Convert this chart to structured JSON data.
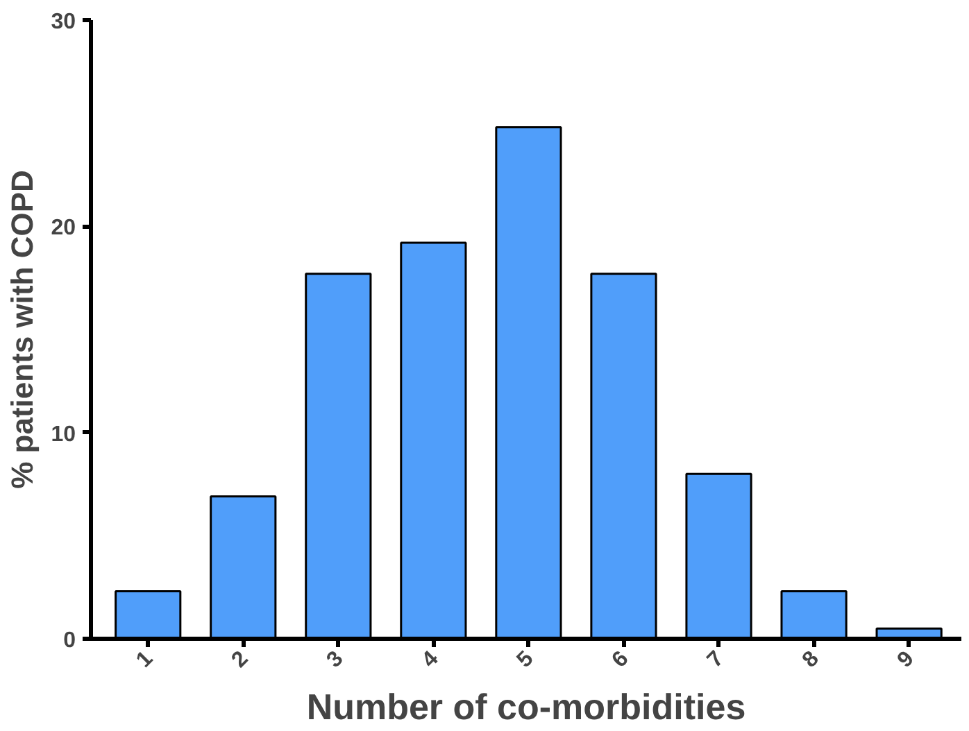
{
  "chart_data": {
    "type": "bar",
    "xlabel": "Number of co-morbidities",
    "ylabel": "% patients with COPD",
    "categories": [
      "1",
      "2",
      "3",
      "4",
      "5",
      "6",
      "7",
      "8",
      "9"
    ],
    "values": [
      2.3,
      6.9,
      17.7,
      19.2,
      24.8,
      17.7,
      8.0,
      2.3,
      0.5
    ],
    "color": "#509efa",
    "ylim": [
      0,
      30
    ],
    "yticks": [
      0,
      10,
      20,
      30
    ],
    "grid": false
  }
}
